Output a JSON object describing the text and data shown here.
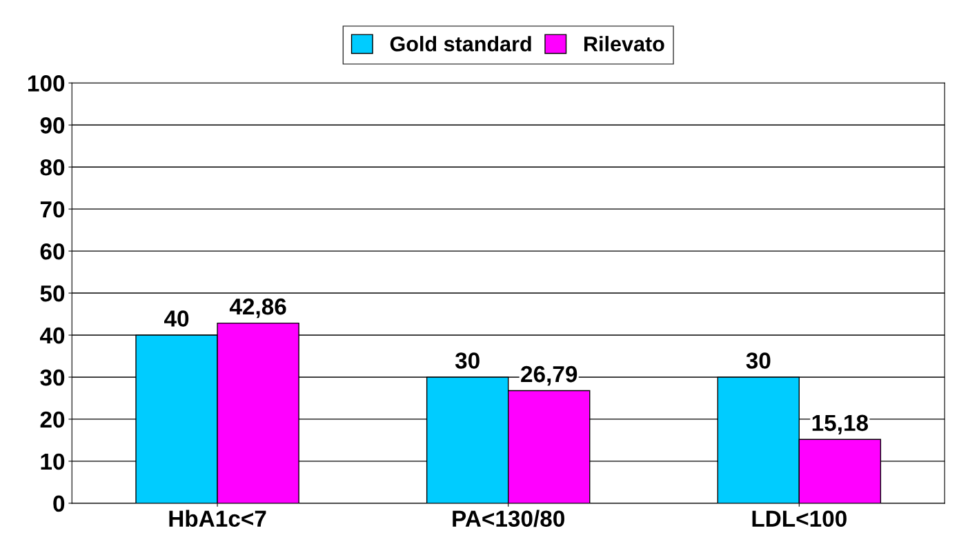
{
  "chart_data": {
    "type": "bar",
    "categories": [
      "HbA1c<7",
      "PA<130/80",
      "LDL<100"
    ],
    "series": [
      {
        "name": "Gold standard",
        "color": "#00ccff",
        "values": [
          40,
          30,
          30
        ],
        "value_labels": [
          "40",
          "30",
          "30"
        ]
      },
      {
        "name": "Rilevato",
        "color": "#ff00ff",
        "values": [
          42.86,
          26.79,
          15.18
        ],
        "value_labels": [
          "42,86",
          "26,79",
          "15,18"
        ]
      }
    ],
    "ylim": [
      0,
      100
    ],
    "yticks": [
      0,
      10,
      20,
      30,
      40,
      50,
      60,
      70,
      80,
      90,
      100
    ],
    "grid": "y",
    "legend": "top"
  }
}
